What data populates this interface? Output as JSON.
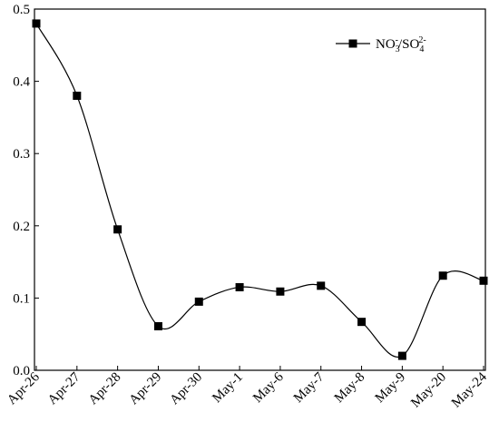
{
  "chart_data": {
    "type": "line",
    "categories": [
      "Apr-26",
      "Apr-27",
      "Apr-28",
      "Apr-29",
      "Apr-30",
      "May-1",
      "May-6",
      "May-7",
      "May-8",
      "May-9",
      "May-20",
      "May-24"
    ],
    "series": [
      {
        "name": "NO3-/SO42-",
        "values": [
          0.48,
          0.38,
          0.195,
          0.061,
          0.095,
          0.115,
          0.109,
          0.117,
          0.067,
          0.02,
          0.131,
          0.124
        ],
        "color": "#000000",
        "marker": "square",
        "smooth": true
      }
    ],
    "ylim": [
      0,
      0.5
    ],
    "yticks": [
      0.0,
      0.1,
      0.2,
      0.3,
      0.4,
      0.5
    ],
    "ytick_labels": [
      "0.0",
      "0.1",
      "0.2",
      "0.3",
      "0.4",
      "0.5"
    ],
    "xtick_rotation": -45,
    "legend_position": "top-right",
    "grid": false
  }
}
